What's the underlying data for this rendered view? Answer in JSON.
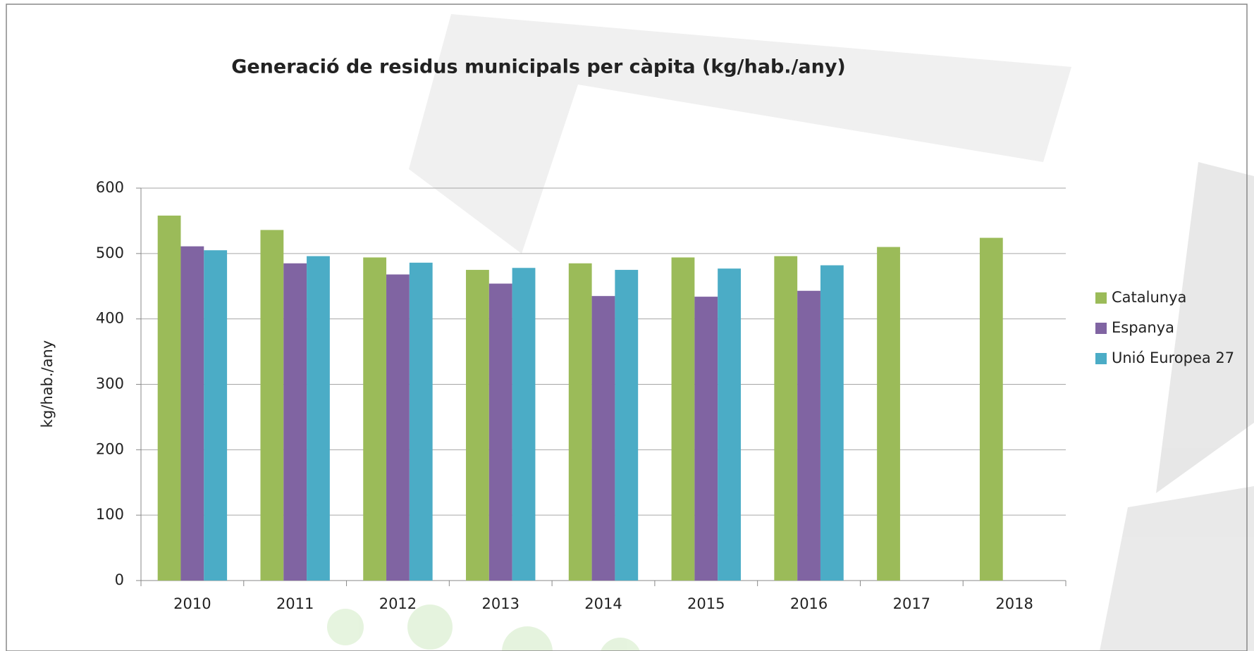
{
  "chart_data": {
    "type": "bar",
    "title": "Generació de residus municipals per càpita (kg/hab./any)",
    "y_label": "kg/hab./any",
    "categories": [
      "2010",
      "2011",
      "2012",
      "2013",
      "2014",
      "2015",
      "2016",
      "2017",
      "2018"
    ],
    "series": [
      {
        "name": "Catalunya",
        "color": "#9bbb59",
        "values": [
          558,
          536,
          494,
          475,
          485,
          494,
          496,
          510,
          524
        ]
      },
      {
        "name": "Espanya",
        "color": "#8064a2",
        "values": [
          511,
          485,
          468,
          454,
          435,
          434,
          443,
          null,
          null
        ]
      },
      {
        "name": "Unió Europea 27",
        "color": "#4bacc6",
        "values": [
          505,
          496,
          486,
          478,
          475,
          477,
          482,
          null,
          null
        ]
      }
    ],
    "ylim": [
      0,
      600
    ],
    "yticks": [
      0,
      100,
      200,
      300,
      400,
      500,
      600
    ],
    "grid": true,
    "legend": "right"
  }
}
